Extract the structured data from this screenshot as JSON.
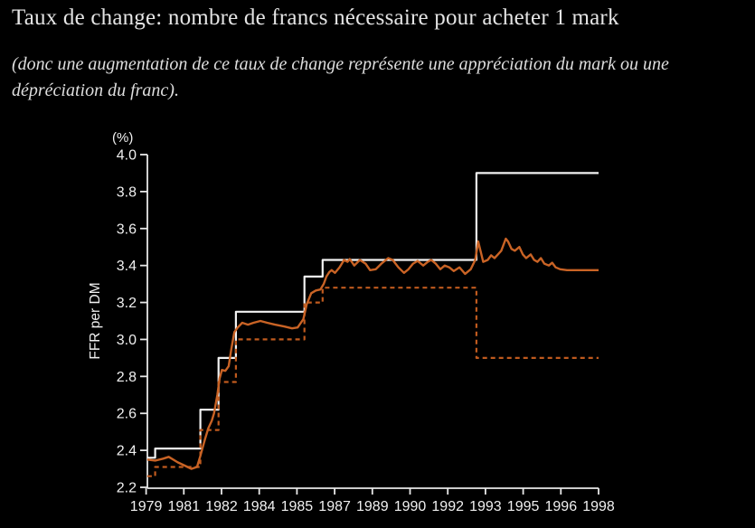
{
  "page": {
    "title": "Taux de change: nombre de francs nécessaire pour acheter 1 mark",
    "subtitle_line1": "(donc une augmentation de ce taux de change représente une appréciation du mark ou une",
    "subtitle_line2": "dépréciation du franc).",
    "background": "#000000"
  },
  "chart_data": {
    "type": "line",
    "title": "",
    "unit_label": "(%)",
    "ylabel": "FFR per DM",
    "xlabel": "",
    "ylim": [
      2.2,
      4.0
    ],
    "xlim": [
      1979,
      1999
    ],
    "grid": false,
    "legend": "none",
    "ytick_labels": [
      "2.2",
      "2.4",
      "2.6",
      "2.8",
      "3.0",
      "3.2",
      "3.4",
      "3.6",
      "3.8",
      "4.0"
    ],
    "xtick_labels": [
      "1979",
      "1981",
      "1982",
      "1984",
      "1985",
      "1987",
      "1989",
      "1990",
      "1992",
      "1993",
      "1995",
      "1996",
      "1998"
    ],
    "colors": {
      "axis": "#e8e8e8",
      "band_step": "#f2f2f2",
      "rate_line": "#c96325",
      "band_dashed": "#bf5a1e",
      "text": "#f0f0f0"
    },
    "series": [
      {
        "name": "band-upper-limit",
        "style": "step-solid",
        "color_key": "band_step",
        "end_year": 1999.0,
        "points": [
          [
            1979.05,
            2.36
          ],
          [
            1979.4,
            2.41
          ],
          [
            1981.4,
            2.62
          ],
          [
            1982.2,
            2.9
          ],
          [
            1982.97,
            3.15
          ],
          [
            1986.0,
            3.34
          ],
          [
            1986.8,
            3.43
          ],
          [
            1993.6,
            3.9
          ]
        ]
      },
      {
        "name": "band-lower-limit",
        "style": "step-dashed",
        "color_key": "band_dashed",
        "end_year": 1999.0,
        "points": [
          [
            1979.05,
            2.26
          ],
          [
            1979.4,
            2.31
          ],
          [
            1981.4,
            2.51
          ],
          [
            1982.2,
            2.77
          ],
          [
            1982.97,
            3.0
          ],
          [
            1986.0,
            3.2
          ],
          [
            1986.8,
            3.28
          ],
          [
            1993.6,
            2.9
          ]
        ]
      },
      {
        "name": "exchange-rate",
        "style": "line-solid",
        "color_key": "rate_line",
        "points": [
          [
            1979.05,
            2.35
          ],
          [
            1979.4,
            2.345
          ],
          [
            1979.75,
            2.355
          ],
          [
            1980.0,
            2.365
          ],
          [
            1980.4,
            2.335
          ],
          [
            1980.75,
            2.315
          ],
          [
            1981.0,
            2.3
          ],
          [
            1981.25,
            2.31
          ],
          [
            1981.4,
            2.37
          ],
          [
            1981.6,
            2.46
          ],
          [
            1981.75,
            2.52
          ],
          [
            1981.9,
            2.56
          ],
          [
            1982.0,
            2.6
          ],
          [
            1982.15,
            2.7
          ],
          [
            1982.25,
            2.79
          ],
          [
            1982.35,
            2.835
          ],
          [
            1982.5,
            2.83
          ],
          [
            1982.65,
            2.855
          ],
          [
            1982.77,
            2.95
          ],
          [
            1982.9,
            3.04
          ],
          [
            1983.05,
            3.065
          ],
          [
            1983.25,
            3.09
          ],
          [
            1983.5,
            3.08
          ],
          [
            1983.75,
            3.09
          ],
          [
            1984.05,
            3.1
          ],
          [
            1984.35,
            3.09
          ],
          [
            1984.7,
            3.08
          ],
          [
            1985.1,
            3.07
          ],
          [
            1985.45,
            3.06
          ],
          [
            1985.7,
            3.065
          ],
          [
            1985.95,
            3.11
          ],
          [
            1986.1,
            3.19
          ],
          [
            1986.3,
            3.25
          ],
          [
            1986.5,
            3.265
          ],
          [
            1986.7,
            3.27
          ],
          [
            1986.85,
            3.3
          ],
          [
            1986.97,
            3.34
          ],
          [
            1987.1,
            3.365
          ],
          [
            1987.2,
            3.375
          ],
          [
            1987.35,
            3.36
          ],
          [
            1987.55,
            3.39
          ],
          [
            1987.75,
            3.43
          ],
          [
            1987.9,
            3.42
          ],
          [
            1988.0,
            3.435
          ],
          [
            1988.2,
            3.4
          ],
          [
            1988.45,
            3.43
          ],
          [
            1988.7,
            3.41
          ],
          [
            1988.9,
            3.375
          ],
          [
            1989.15,
            3.38
          ],
          [
            1989.4,
            3.41
          ],
          [
            1989.7,
            3.44
          ],
          [
            1989.9,
            3.43
          ],
          [
            1990.15,
            3.39
          ],
          [
            1990.4,
            3.36
          ],
          [
            1990.6,
            3.38
          ],
          [
            1990.8,
            3.41
          ],
          [
            1991.0,
            3.425
          ],
          [
            1991.25,
            3.4
          ],
          [
            1991.45,
            3.42
          ],
          [
            1991.6,
            3.43
          ],
          [
            1991.8,
            3.41
          ],
          [
            1992.0,
            3.38
          ],
          [
            1992.2,
            3.4
          ],
          [
            1992.4,
            3.39
          ],
          [
            1992.6,
            3.37
          ],
          [
            1992.85,
            3.39
          ],
          [
            1993.1,
            3.355
          ],
          [
            1993.35,
            3.38
          ],
          [
            1993.55,
            3.43
          ],
          [
            1993.68,
            3.53
          ],
          [
            1993.8,
            3.47
          ],
          [
            1993.9,
            3.42
          ],
          [
            1994.1,
            3.43
          ],
          [
            1994.25,
            3.455
          ],
          [
            1994.4,
            3.44
          ],
          [
            1994.55,
            3.46
          ],
          [
            1994.7,
            3.48
          ],
          [
            1994.9,
            3.545
          ],
          [
            1995.0,
            3.53
          ],
          [
            1995.15,
            3.49
          ],
          [
            1995.3,
            3.48
          ],
          [
            1995.5,
            3.5
          ],
          [
            1995.65,
            3.46
          ],
          [
            1995.8,
            3.44
          ],
          [
            1996.0,
            3.46
          ],
          [
            1996.15,
            3.43
          ],
          [
            1996.3,
            3.42
          ],
          [
            1996.45,
            3.44
          ],
          [
            1996.6,
            3.41
          ],
          [
            1996.8,
            3.4
          ],
          [
            1996.95,
            3.415
          ],
          [
            1997.1,
            3.39
          ],
          [
            1997.3,
            3.38
          ],
          [
            1997.6,
            3.375
          ],
          [
            1999.0,
            3.375
          ]
        ]
      }
    ]
  }
}
